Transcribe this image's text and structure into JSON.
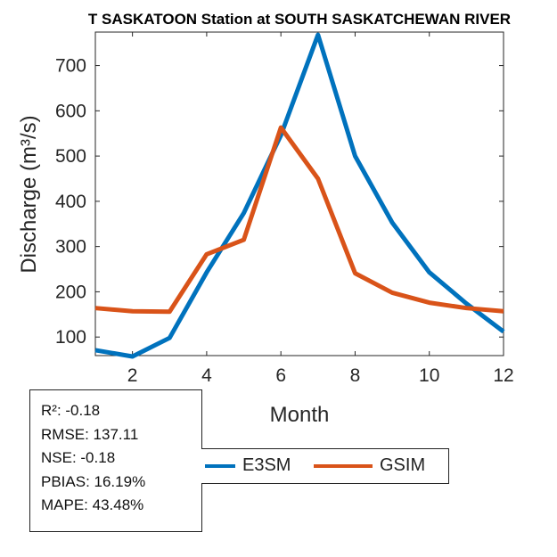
{
  "chart_data": {
    "type": "line",
    "title": "T SASKATOON  Station at  SOUTH SASKATCHEWAN RIVER",
    "xlabel": "Month",
    "ylabel": "Discharge (m³/s)",
    "xlim": [
      1,
      12
    ],
    "ylim": [
      59,
      774
    ],
    "xticks": [
      2,
      4,
      6,
      8,
      10,
      12
    ],
    "yticks": [
      100,
      200,
      300,
      400,
      500,
      600,
      700
    ],
    "grid": false,
    "legend_position": "bottom",
    "x": [
      1,
      2,
      3,
      4,
      5,
      6,
      7,
      8,
      9,
      10,
      11,
      12
    ],
    "series": [
      {
        "name": "E3SM",
        "color": "#0072BD",
        "values": [
          71,
          57,
          98,
          243,
          374,
          546,
          768,
          500,
          353,
          243,
          174,
          112
        ]
      },
      {
        "name": "GSIM",
        "color": "#D95319",
        "values": [
          164,
          157,
          156,
          283,
          315,
          563,
          450,
          241,
          198,
          176,
          164,
          157
        ]
      }
    ]
  },
  "stats": [
    "R²: -0.18",
    "RMSE: 137.11",
    "NSE: -0.18",
    "PBIAS: 16.19%",
    "MAPE: 43.48%"
  ]
}
